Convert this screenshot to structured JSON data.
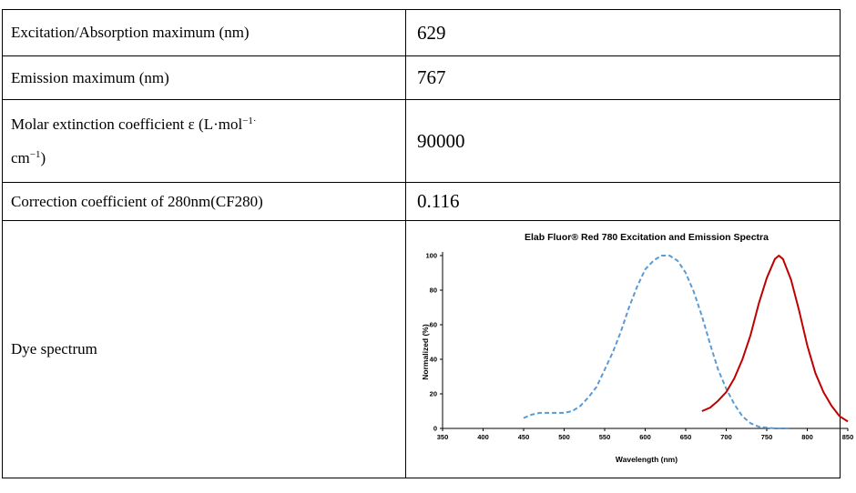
{
  "rows": [
    {
      "label": "Excitation/Absorption maximum (nm)",
      "value": "629"
    },
    {
      "label": "Emission maximum (nm)",
      "value": "767"
    },
    {
      "label_line1": "Molar extinction coefficient ε (L·mol",
      "label_sup1": "−1·",
      "label_line2": "cm",
      "label_sup2": "−1",
      "label_tail": ")",
      "value": "90000"
    },
    {
      "label": "Correction coefficient of 280nm(CF280)",
      "value": "0.116"
    },
    {
      "label": "Dye spectrum"
    }
  ],
  "chart_data": {
    "type": "line",
    "title": "Elab Fluor® Red 780 Excitation and Emission Spectra",
    "xlabel": "Wavelength (nm)",
    "ylabel": "Normalized (%)",
    "xlim": [
      350,
      850
    ],
    "ylim": [
      0,
      100
    ],
    "xticks": [
      350,
      400,
      450,
      500,
      550,
      600,
      650,
      700,
      750,
      800,
      850
    ],
    "yticks": [
      0,
      20,
      40,
      60,
      80,
      100
    ],
    "grid": false,
    "series": [
      {
        "style": "dashed",
        "color": "#5b9bd5",
        "x": [
          450,
          460,
          470,
          480,
          490,
          500,
          510,
          520,
          530,
          540,
          550,
          560,
          570,
          580,
          590,
          600,
          610,
          620,
          630,
          640,
          650,
          660,
          670,
          680,
          690,
          700,
          710,
          720,
          730,
          740,
          750,
          760,
          770,
          780
        ],
        "y": [
          6,
          8,
          9,
          9,
          9,
          9,
          10,
          13,
          18,
          24,
          34,
          44,
          56,
          70,
          82,
          92,
          97,
          100,
          100,
          97,
          90,
          79,
          65,
          49,
          34,
          23,
          14,
          7,
          3,
          1,
          0.5,
          0,
          0,
          0
        ]
      },
      {
        "style": "solid",
        "color": "#c00000",
        "x": [
          670,
          680,
          690,
          700,
          710,
          720,
          730,
          740,
          750,
          760,
          765,
          770,
          780,
          790,
          800,
          810,
          820,
          830,
          840,
          850
        ],
        "y": [
          10,
          12,
          16,
          21,
          29,
          40,
          54,
          72,
          87,
          98,
          100,
          98,
          86,
          68,
          48,
          32,
          21,
          13,
          7,
          4
        ]
      }
    ]
  }
}
